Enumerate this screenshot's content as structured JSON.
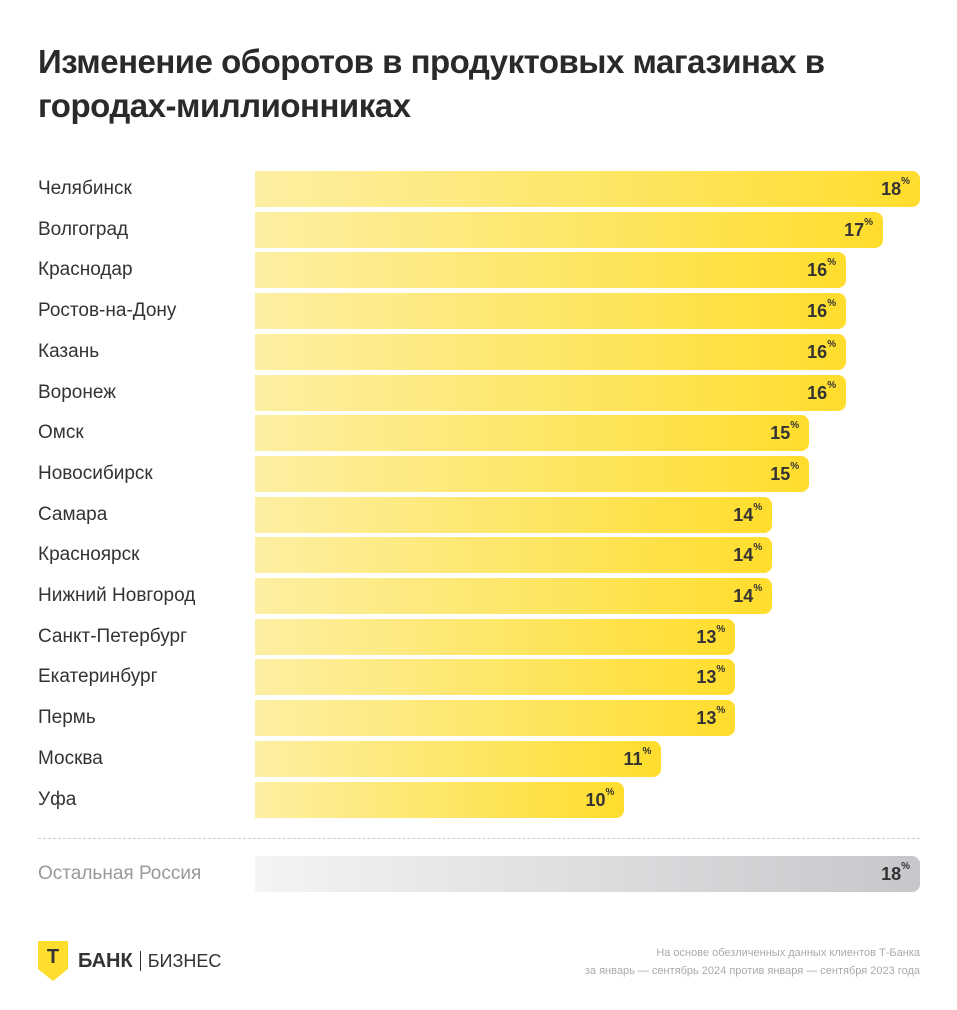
{
  "chart_data": {
    "type": "bar",
    "orientation": "horizontal",
    "title": "Изменение оборотов в продуктовых магазинах в городах-миллионниках",
    "unit": "%",
    "categories": [
      "Челябинск",
      "Волгоград",
      "Краснодар",
      "Ростов-на-Дону",
      "Казань",
      "Воронеж",
      "Омск",
      "Новосибирск",
      "Самара",
      "Красноярск",
      "Нижний  Новгород",
      "Санкт-Петербург",
      "Екатеринбург",
      "Пермь",
      "Москва",
      "Уфа"
    ],
    "values": [
      18,
      17,
      16,
      16,
      16,
      16,
      15,
      15,
      14,
      14,
      14,
      13,
      13,
      13,
      11,
      10
    ],
    "reference": {
      "label": "Остальная Россия",
      "value": 18
    },
    "xlim": [
      0,
      18
    ],
    "grid": false,
    "colors": {
      "bar": "#FFDD2D",
      "reference": "#C6C7CA"
    }
  },
  "footer": {
    "logo_letter": "Т",
    "brand": "БАНК",
    "brand_sub": "БИЗНЕС",
    "note_line1": "На основе обезличенных данных клиентов Т-Банка",
    "note_line2": "за январь — сентябрь 2024 против января — сентября 2023 года"
  }
}
